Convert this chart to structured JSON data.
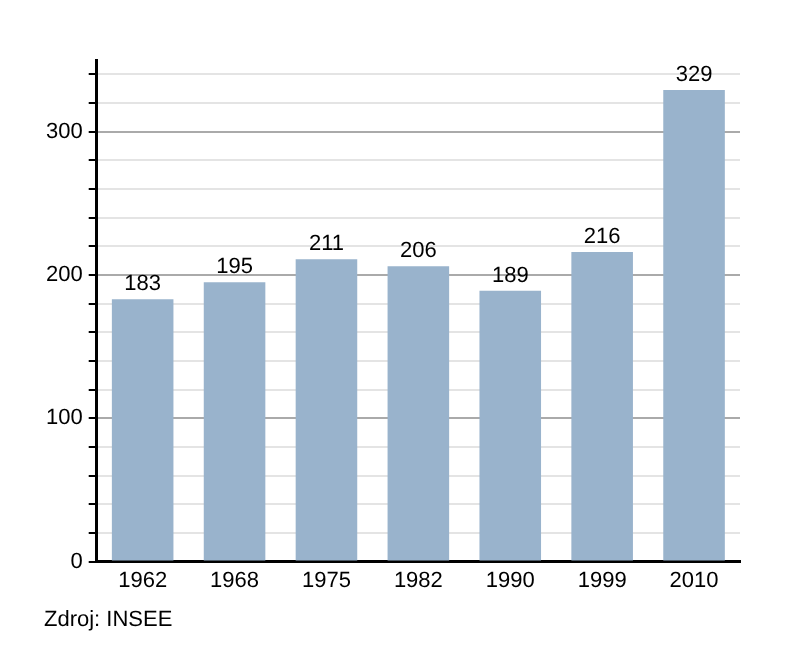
{
  "chart_data": {
    "type": "bar",
    "categories": [
      "1962",
      "1968",
      "1975",
      "1982",
      "1990",
      "1999",
      "2010"
    ],
    "values": [
      183,
      195,
      211,
      206,
      189,
      216,
      329
    ],
    "color": "#99b3cc",
    "data_labels": true,
    "ylim": [
      0,
      350
    ],
    "yticks": [
      0,
      {
        "value": 20,
        "label": null
      },
      {
        "value": 40,
        "label": null
      },
      {
        "value": 60,
        "label": null
      },
      {
        "value": 80,
        "label": null
      },
      100,
      {
        "value": 120,
        "label": null
      },
      {
        "value": 140,
        "label": null
      },
      {
        "value": 160,
        "label": null
      },
      {
        "value": 180,
        "label": null
      },
      200,
      {
        "value": 220,
        "label": null
      },
      {
        "value": 240,
        "label": null
      },
      {
        "value": 260,
        "label": null
      },
      {
        "value": 280,
        "label": null
      },
      300,
      {
        "value": 320,
        "label": null
      },
      {
        "value": 340,
        "label": null
      }
    ],
    "grid": true,
    "annotations": [
      "Zdroj: INSEE"
    ]
  }
}
